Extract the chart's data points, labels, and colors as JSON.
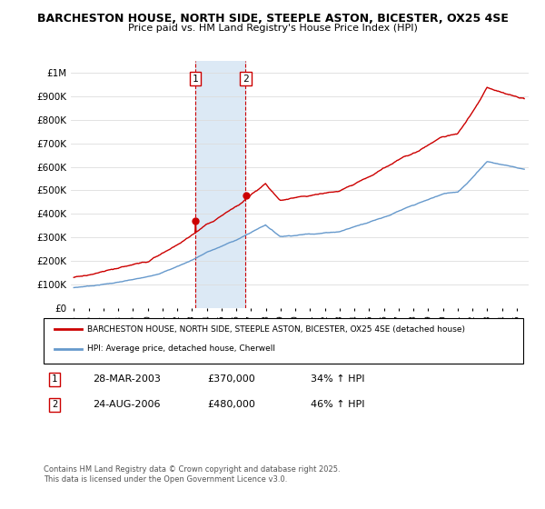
{
  "title": "BARCHESTON HOUSE, NORTH SIDE, STEEPLE ASTON, BICESTER, OX25 4SE",
  "subtitle": "Price paid vs. HM Land Registry's House Price Index (HPI)",
  "legend_line1": "BARCHESTON HOUSE, NORTH SIDE, STEEPLE ASTON, BICESTER, OX25 4SE (detached house)",
  "legend_line2": "HPI: Average price, detached house, Cherwell",
  "sale1_date": "28-MAR-2003",
  "sale1_price": "£370,000",
  "sale1_hpi": "34% ↑ HPI",
  "sale1_year": 2003.23,
  "sale1_value": 370000,
  "sale2_date": "24-AUG-2006",
  "sale2_price": "£480,000",
  "sale2_hpi": "46% ↑ HPI",
  "sale2_year": 2006.64,
  "sale2_value": 480000,
  "footer": "Contains HM Land Registry data © Crown copyright and database right 2025.\nThis data is licensed under the Open Government Licence v3.0.",
  "red_color": "#cc0000",
  "blue_color": "#6699cc",
  "shade_color": "#dce9f5",
  "ylim_max": 1050000,
  "xlim_start": 1994.8,
  "xlim_end": 2025.8
}
